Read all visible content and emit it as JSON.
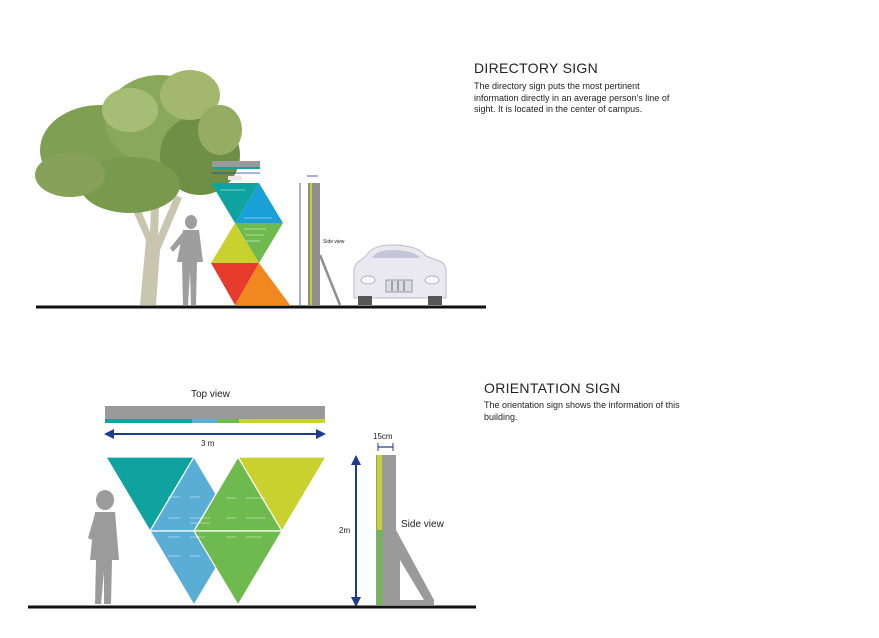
{
  "directory_sign": {
    "title": "DIRECTORY SIGN",
    "description": "The directory sign puts the most pertinent information directly in an average person's line of sight. It is located in  the center of campus.",
    "side_view_label": "Side view"
  },
  "orientation_sign": {
    "title": "ORIENTATION SIGN",
    "description": "The orientation sign shows the information of this building.",
    "top_view_label": "Top view",
    "width_label": "3 m",
    "height_label": "2m",
    "depth_label": "15cm",
    "side_view_label": "Side view"
  },
  "colors": {
    "teal": "#0fa3a0",
    "blue": "#1a9fd6",
    "light_blue": "#5aaed6",
    "lime": "#c9d12f",
    "green": "#6fba4e",
    "red": "#e63a2c",
    "orange": "#f0871f",
    "gray": "#9a9a9a",
    "dimension_blue": "#1f3a93",
    "ground": "#111111"
  },
  "icons": [
    "tree-icon",
    "person-silhouette-icon",
    "car-icon"
  ]
}
